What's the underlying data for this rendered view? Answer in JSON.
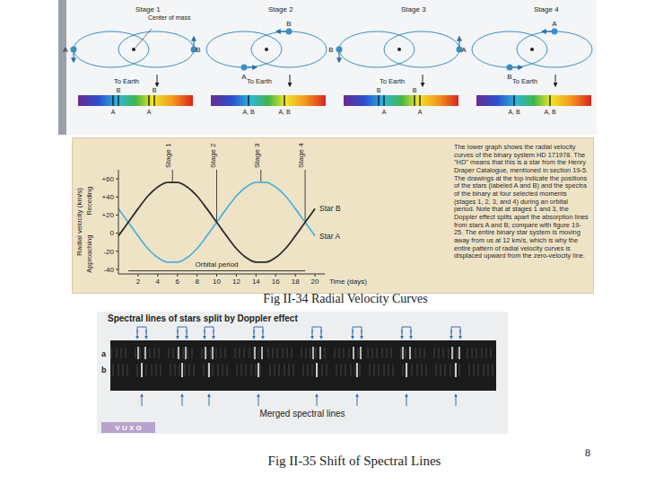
{
  "chart_data": {
    "type": "line",
    "x_label": "Time (days)",
    "y_label": "Radial velocity (km/s)",
    "y_label_upper": "Receding",
    "y_label_lower": "Approaching",
    "x": [
      0,
      1,
      2,
      3,
      4,
      5,
      6,
      7,
      8,
      9,
      10,
      11,
      12,
      13,
      14,
      15,
      16,
      17,
      18,
      19,
      20
    ],
    "series": [
      {
        "name": "Star A",
        "color": "#4fb3d9",
        "values": [
          27,
          12,
          -3,
          -17,
          -27,
          -32,
          -32,
          -27,
          -17,
          -3,
          12,
          27,
          41,
          51,
          56,
          56,
          51,
          41,
          27,
          12,
          -3
        ]
      },
      {
        "name": "Star B",
        "color": "#2b2b2b",
        "values": [
          -3,
          12,
          27,
          41,
          51,
          56,
          56,
          51,
          41,
          27,
          12,
          -3,
          -17,
          -27,
          -32,
          -32,
          -27,
          -17,
          -3,
          12,
          27
        ]
      }
    ],
    "xlim": [
      0,
      21
    ],
    "xticks": [
      2,
      4,
      6,
      8,
      10,
      12,
      14,
      16,
      18,
      20
    ],
    "ylim": [
      -45,
      70
    ],
    "yticks": [
      {
        "value": 60,
        "label": "+60"
      },
      {
        "value": 40,
        "label": "+40"
      },
      {
        "value": 20,
        "label": "+20"
      },
      0,
      -20,
      -40
    ],
    "grid": false,
    "annotations": [
      {
        "text": "Stage 1",
        "x": 5.5
      },
      {
        "text": "Stage 2",
        "x": 10
      },
      {
        "text": "Stage 3",
        "x": 14.5
      },
      {
        "text": "Stage 4",
        "x": 19
      }
    ],
    "orbital_period": {
      "text": "Orbital period",
      "start": 1,
      "end": 19
    }
  },
  "stages": [
    {
      "title": "Stage 1",
      "center_of_mass": "Center of mass",
      "stars": [
        "A",
        "B"
      ],
      "to_earth": "To Earth",
      "spectrum_top": [
        "B",
        "B"
      ],
      "spectrum_bottom": [
        "A",
        "A"
      ]
    },
    {
      "title": "Stage 2",
      "stars": [
        "A",
        "B"
      ],
      "to_earth": "To Earth",
      "spectrum_top": [],
      "spectrum_bottom": [
        "A, B",
        "A, B"
      ]
    },
    {
      "title": "Stage 3",
      "stars": [
        "A",
        "B"
      ],
      "to_earth": "To Earth",
      "spectrum_top": [
        "B",
        "B"
      ],
      "spectrum_bottom": [
        "A",
        "A"
      ]
    },
    {
      "title": "Stage 4",
      "stars": [
        "A",
        "B"
      ],
      "to_earth": "To Earth",
      "spectrum_top": [],
      "spectrum_bottom": [
        "A, B",
        "A, B"
      ]
    }
  ],
  "caption_text": "The lower graph shows the radial velocity curves of the binary system HD 171978. The \"HD\" means that this is a star from the Henry Draper Catalogue, mentioned in section 19-5. The drawings at the top indicate the positions of the stars (labeled A and B) and the spectra of the binary at four selected moments (stages 1, 2, 3, and 4) during an orbital period. Note that at stages 1 and 3, the Doppler effect splits apart the absorption lines from stars A and B; compare with figure 19-25. The entire binary star system is moving away from us at 12 km/s, which is why the entire pattern of radial velocity curves is displaced upward from the zero-velocity line.",
  "figure_captions": [
    "Fig II-34 Radial Velocity Curves",
    "Fig II-35 Shift of Spectral Lines"
  ],
  "spectral_figure": {
    "title": "Spectral lines of stars split by Doppler effect",
    "row_labels": [
      "a",
      "b"
    ],
    "merged_label": "Merged spectral lines",
    "footer": "V U X G"
  },
  "page_number": 8
}
